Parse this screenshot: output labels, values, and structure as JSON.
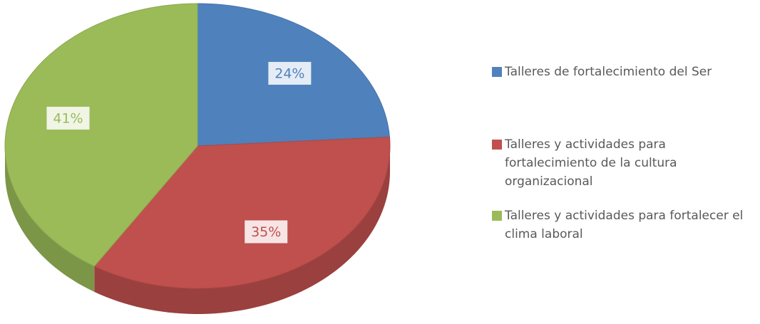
{
  "chart_data": {
    "type": "pie",
    "categories": [
      "Talleres de fortalecimiento del Ser",
      "Talleres y actividades para fortalecimiento de la cultura organizacional",
      "Talleres y actividades para fortalecer el clima laboral"
    ],
    "values": [
      24,
      35,
      41
    ],
    "value_labels": [
      "24%",
      "35%",
      "41%"
    ],
    "colors": [
      "#4f81bd",
      "#c0504d",
      "#9bbb59"
    ],
    "legend": "right"
  }
}
